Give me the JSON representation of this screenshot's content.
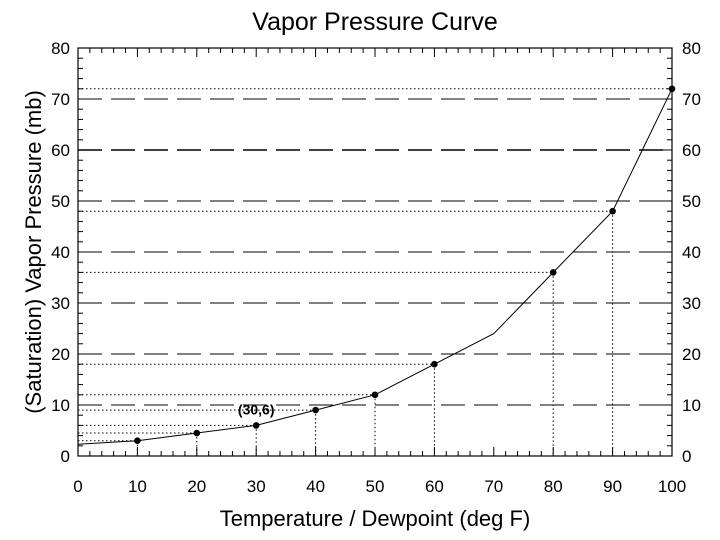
{
  "chart_data": {
    "type": "line",
    "title": "Vapor Pressure Curve",
    "xlabel": "Temperature / Dewpoint (deg F)",
    "ylabel": "(Saturation) Vapor Pressure (mb)",
    "xlim": [
      0,
      100
    ],
    "ylim": [
      0,
      80
    ],
    "x_ticks": [
      "0",
      "10",
      "20",
      "30",
      "40",
      "50",
      "60",
      "70",
      "80",
      "90",
      "100"
    ],
    "y_ticks": [
      "0",
      "10",
      "20",
      "30",
      "40",
      "50",
      "60",
      "70",
      "80"
    ],
    "right_axis_mirrored": true,
    "grid": "horizontal dashed lines every 10 mb",
    "series": [
      {
        "x": [
          0,
          10,
          20,
          30,
          40,
          50,
          60,
          70,
          80,
          90,
          100
        ],
        "y": [
          2.3,
          3,
          4.5,
          6,
          9,
          12,
          18,
          24,
          36,
          48,
          72
        ],
        "markers_at_x": [
          10,
          20,
          30,
          40,
          50,
          60,
          80,
          90,
          100
        ]
      }
    ],
    "reference_lines": "dotted drop lines from each marked point to the x-axis and to the left axis",
    "annotations": [
      {
        "text": "(30,6)",
        "x": 30,
        "y": 6
      }
    ]
  }
}
